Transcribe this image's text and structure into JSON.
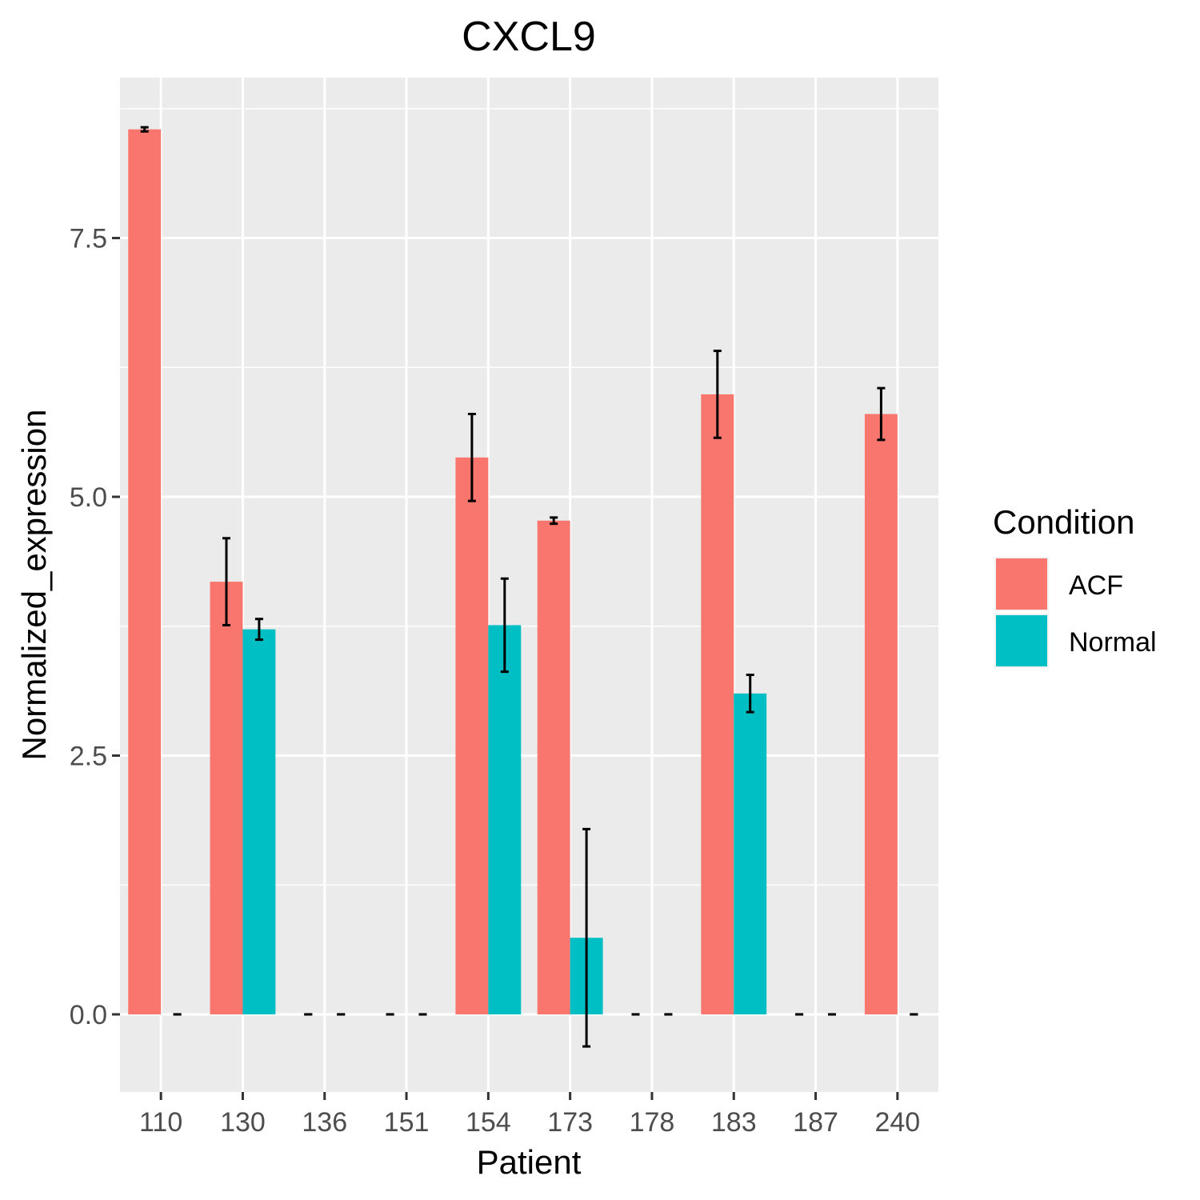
{
  "chart_data": {
    "type": "bar",
    "title": "CXCL9",
    "xlabel": "Patient",
    "ylabel": "Normalized_expression",
    "categories": [
      "110",
      "130",
      "136",
      "151",
      "154",
      "173",
      "178",
      "183",
      "187",
      "240"
    ],
    "ylim": [
      -0.75,
      9.05
    ],
    "yticks": [
      "0.0",
      "2.5",
      "5.0",
      "7.5"
    ],
    "grid": true,
    "legend": {
      "title": "Condition",
      "position": "right"
    },
    "series": [
      {
        "name": "ACF",
        "color": "#F8766D",
        "values": [
          8.55,
          4.18,
          0,
          0,
          5.38,
          4.77,
          0,
          5.99,
          0,
          5.8
        ],
        "error": [
          [
            8.53,
            8.57
          ],
          [
            3.76,
            4.6
          ],
          [
            0,
            0
          ],
          [
            0,
            0
          ],
          [
            4.96,
            5.8
          ],
          [
            4.74,
            4.8
          ],
          [
            0,
            0
          ],
          [
            5.57,
            6.41
          ],
          [
            0,
            0
          ],
          [
            5.55,
            6.05
          ]
        ]
      },
      {
        "name": "Normal",
        "color": "#00BFC4",
        "values": [
          0,
          3.72,
          0,
          0,
          3.76,
          0.74,
          0,
          3.1,
          0,
          0
        ],
        "error": [
          [
            0,
            0
          ],
          [
            3.62,
            3.82
          ],
          [
            0,
            0
          ],
          [
            0,
            0
          ],
          [
            3.31,
            4.21
          ],
          [
            -0.31,
            1.79
          ],
          [
            0,
            0
          ],
          [
            2.92,
            3.28
          ],
          [
            0,
            0
          ],
          [
            0,
            0
          ]
        ]
      }
    ]
  }
}
